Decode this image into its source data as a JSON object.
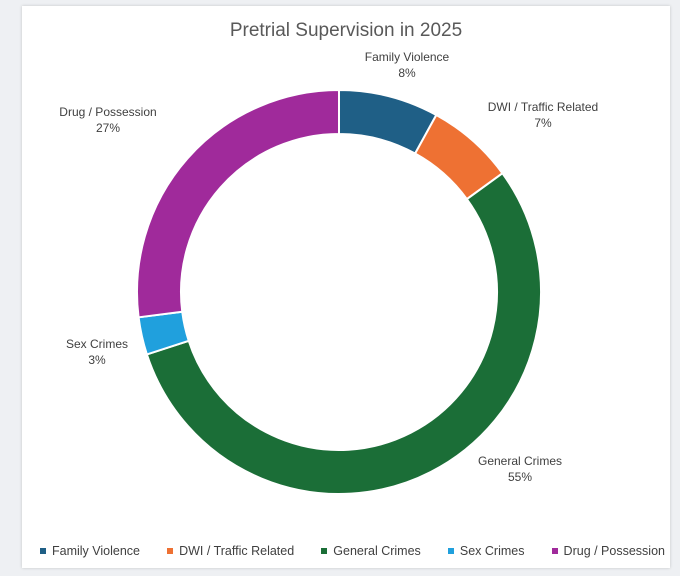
{
  "chart_data": {
    "type": "pie",
    "title": "Pretrial Supervision in 2025",
    "categories": [
      "Family Violence",
      "DWI / Traffic Related",
      "General Crimes",
      "Sex Crimes",
      "Drug  / Possession"
    ],
    "values": [
      8,
      7,
      55,
      3,
      27
    ],
    "value_labels": [
      "8%",
      "7%",
      "55%",
      "3%",
      "27%"
    ],
    "colors": [
      "#1f5f86",
      "#ee7133",
      "#1b6e37",
      "#20a0dd",
      "#a02a9b"
    ],
    "donut": true,
    "legend_position": "bottom"
  }
}
